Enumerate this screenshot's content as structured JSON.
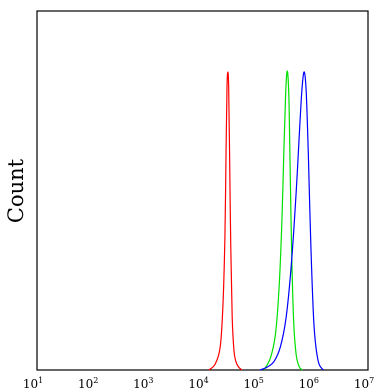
{
  "chart_data": {
    "type": "line",
    "xscale": "log10",
    "xlim": [
      10,
      10000000
    ],
    "ylim": [
      0,
      1
    ],
    "xlabel": "",
    "ylabel": "Count",
    "grid": false,
    "legend": "none",
    "xticks": [
      {
        "value": 10,
        "base": "10",
        "exp": "1"
      },
      {
        "value": 100,
        "base": "10",
        "exp": "2"
      },
      {
        "value": 1000,
        "base": "10",
        "exp": "3"
      },
      {
        "value": 10000,
        "base": "10",
        "exp": "4"
      },
      {
        "value": 100000,
        "base": "10",
        "exp": "5"
      },
      {
        "value": 1000000,
        "base": "10",
        "exp": "6"
      },
      {
        "value": 10000000,
        "base": "10",
        "exp": "7"
      }
    ],
    "series": [
      {
        "color": "#ff0000",
        "x": [
          13000,
          17000,
          21000,
          23500,
          25500,
          26800,
          27800,
          28800,
          29800,
          31000,
          32500,
          34500,
          37000,
          40000,
          45000,
          52000
        ],
        "y": [
          0.0,
          0.02,
          0.08,
          0.22,
          0.45,
          0.75,
          0.95,
          1.0,
          0.95,
          0.72,
          0.42,
          0.18,
          0.07,
          0.03,
          0.01,
          0.0
        ]
      },
      {
        "color": "#00e000",
        "x": [
          130000,
          170000,
          210000,
          245000,
          275000,
          300000,
          322000,
          340000,
          356000,
          372000,
          390000,
          415000,
          450000,
          500000,
          570000,
          650000
        ],
        "y": [
          0.0,
          0.04,
          0.12,
          0.28,
          0.5,
          0.75,
          0.93,
          1.0,
          0.98,
          0.88,
          0.65,
          0.38,
          0.16,
          0.05,
          0.01,
          0.0
        ]
      },
      {
        "color": "#0000ff",
        "x": [
          110000,
          150000,
          200000,
          260000,
          330000,
          410000,
          500000,
          580000,
          640000,
          700000,
          760000,
          830000,
          920000,
          1050000,
          1250000,
          1550000
        ],
        "y": [
          0.0,
          0.01,
          0.03,
          0.08,
          0.18,
          0.36,
          0.6,
          0.82,
          0.95,
          1.0,
          0.93,
          0.72,
          0.42,
          0.15,
          0.03,
          0.0
        ]
      }
    ]
  }
}
